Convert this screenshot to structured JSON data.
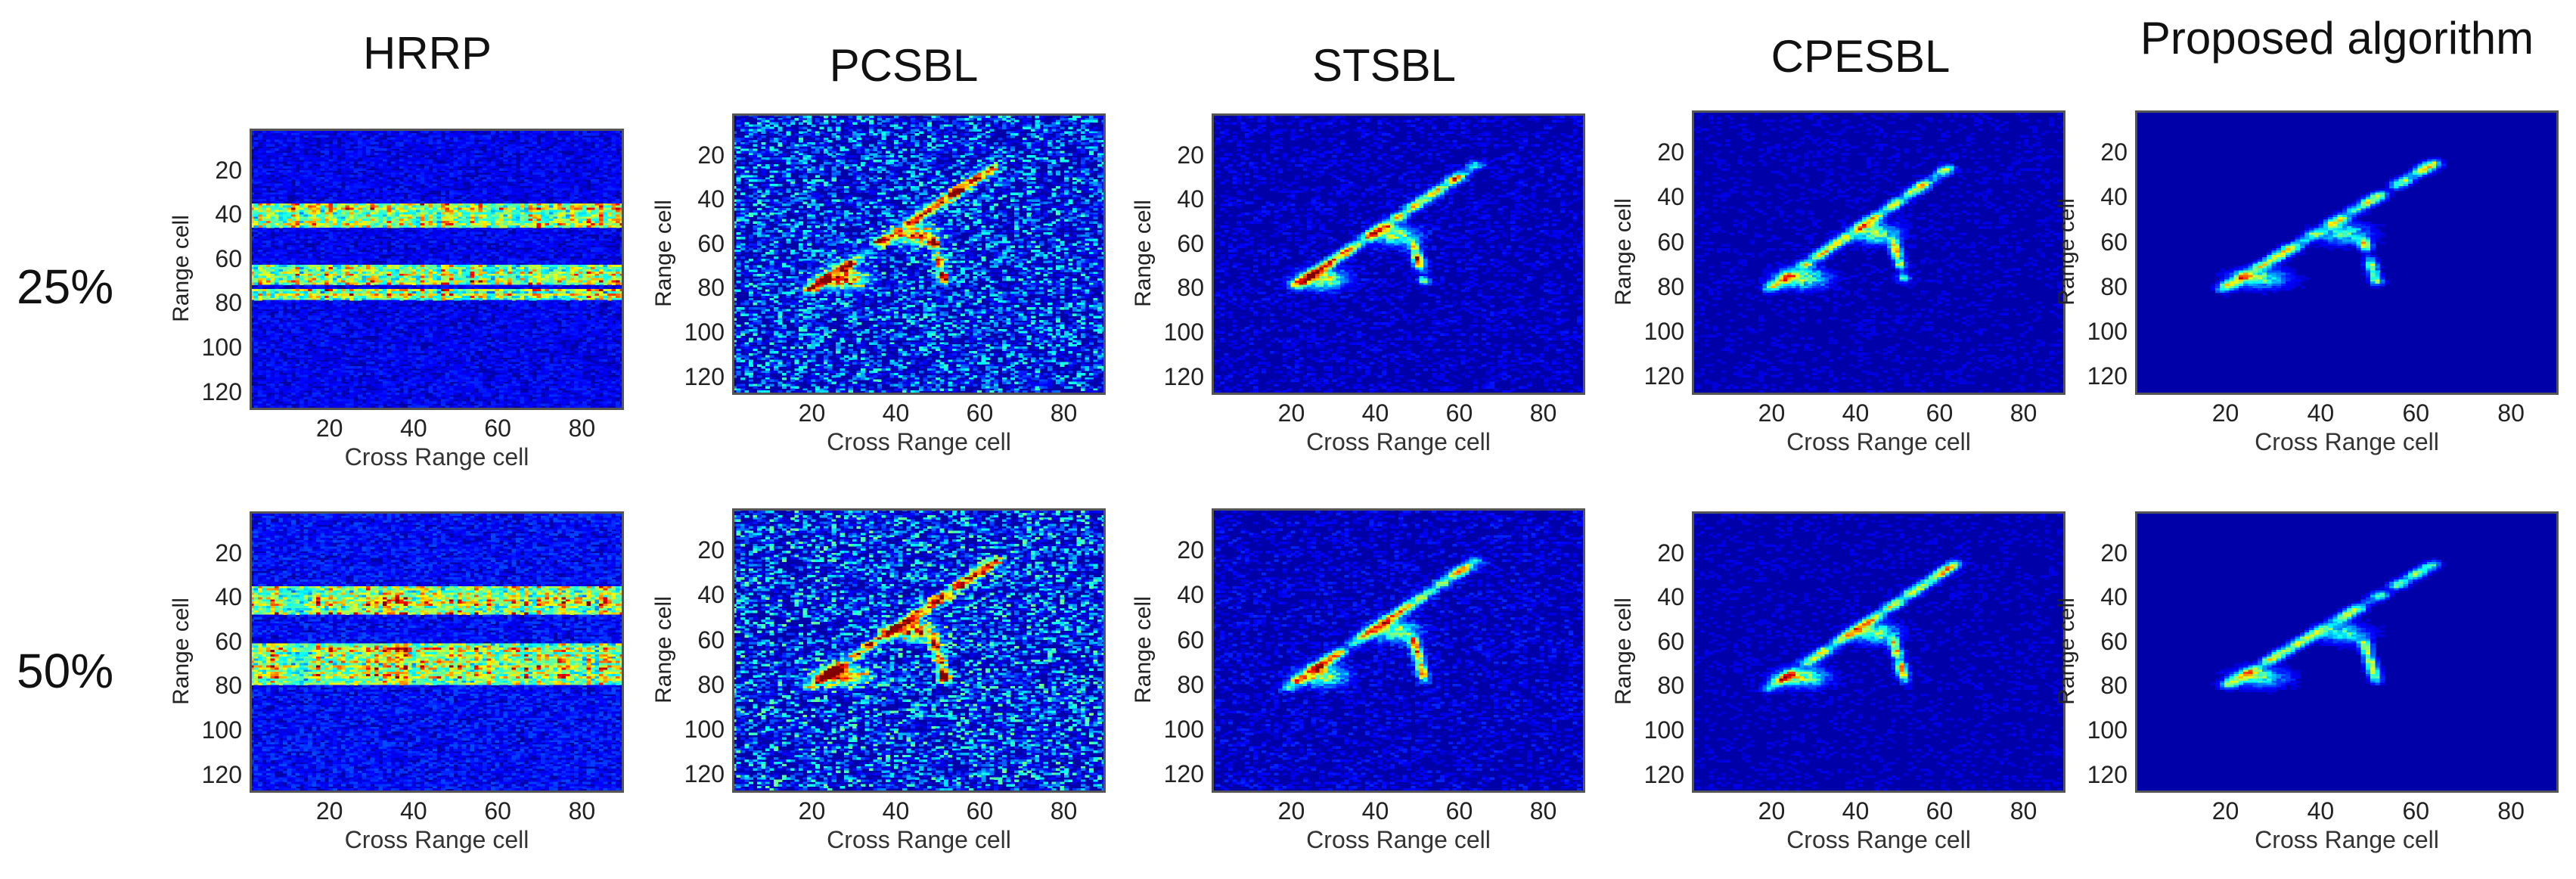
{
  "chart_data": {
    "type": "heatmap",
    "colormap": "jet",
    "columns": [
      "HRRP",
      "PCSBL",
      "STSBL",
      "CPESBL",
      "Proposed algorithm"
    ],
    "rows": [
      "25%",
      "50%"
    ],
    "xlabel": "Cross Range cell",
    "ylabel": "Range cell",
    "xlim": [
      1,
      90
    ],
    "ylim": [
      1,
      128
    ],
    "xticks": [
      20,
      40,
      60,
      80
    ],
    "yticks": [
      20,
      40,
      60,
      80,
      100,
      120
    ],
    "panels": [
      {
        "row": "25%",
        "column": "HRRP",
        "kind": "hrrp",
        "bands": [
          [
            34,
            44
          ],
          [
            62,
            70
          ],
          [
            73,
            77
          ]
        ],
        "noise": 0.2
      },
      {
        "row": "25%",
        "column": "PCSBL",
        "kind": "isar",
        "noise": 0.45,
        "strength": 1.0
      },
      {
        "row": "25%",
        "column": "STSBL",
        "kind": "isar",
        "noise": 0.12,
        "strength": 0.75
      },
      {
        "row": "25%",
        "column": "CPESBL",
        "kind": "isar",
        "noise": 0.08,
        "strength": 0.7
      },
      {
        "row": "25%",
        "column": "Proposed algorithm",
        "kind": "isar",
        "noise": 0.04,
        "strength": 0.6
      },
      {
        "row": "50%",
        "column": "HRRP",
        "kind": "hrrp",
        "bands": [
          [
            34,
            46
          ],
          [
            60,
            72
          ],
          [
            72,
            78
          ]
        ],
        "noise": 0.25
      },
      {
        "row": "50%",
        "column": "PCSBL",
        "kind": "isar",
        "noise": 0.5,
        "strength": 1.0
      },
      {
        "row": "50%",
        "column": "STSBL",
        "kind": "isar",
        "noise": 0.14,
        "strength": 0.75
      },
      {
        "row": "50%",
        "column": "CPESBL",
        "kind": "isar",
        "noise": 0.08,
        "strength": 0.7
      },
      {
        "row": "50%",
        "column": "Proposed algorithm",
        "kind": "isar",
        "noise": 0.03,
        "strength": 0.55
      }
    ]
  }
}
